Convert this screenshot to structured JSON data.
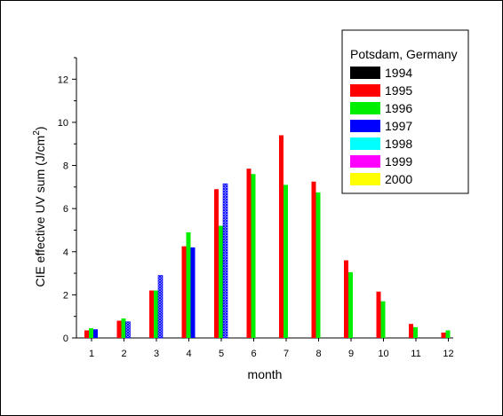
{
  "chart_data": {
    "type": "bar",
    "xlabel": "month",
    "ylabel": "CIE effective UV sum (J/cm",
    "ylabel_sup": "2",
    "ylabel_close": ")",
    "ylim": [
      0,
      13
    ],
    "yticks": [
      0,
      2,
      4,
      6,
      8,
      10,
      12
    ],
    "categories": [
      "1",
      "2",
      "3",
      "4",
      "5",
      "6",
      "7",
      "8",
      "9",
      "10",
      "11",
      "12"
    ],
    "legend": {
      "title": "Potsdam, Germany",
      "placement": "top-right"
    },
    "series": [
      {
        "name": "1994",
        "color": "#000000",
        "values": [
          null,
          null,
          null,
          null,
          null,
          null,
          null,
          null,
          null,
          null,
          null,
          null
        ]
      },
      {
        "name": "1995",
        "color": "#ff0000",
        "values": [
          0.35,
          0.8,
          2.2,
          4.25,
          6.9,
          7.85,
          9.4,
          7.25,
          3.6,
          2.15,
          0.65,
          0.25
        ]
      },
      {
        "name": "1996",
        "color": "#00ee00",
        "values": [
          0.45,
          0.9,
          2.2,
          4.9,
          5.2,
          7.6,
          7.1,
          6.75,
          3.05,
          1.7,
          0.5,
          0.35
        ]
      },
      {
        "name": "1997",
        "color": "#0000ff",
        "pattern_from_month": 2,
        "values": [
          0.4,
          0.75,
          2.9,
          4.2,
          7.15,
          null,
          null,
          null,
          null,
          null,
          null,
          null
        ]
      },
      {
        "name": "1998",
        "color": "#00ffff",
        "values": [
          null,
          null,
          null,
          null,
          null,
          null,
          null,
          null,
          null,
          null,
          null,
          null
        ]
      },
      {
        "name": "1999",
        "color": "#ff00ff",
        "values": [
          null,
          null,
          null,
          null,
          null,
          null,
          null,
          null,
          null,
          null,
          null,
          null
        ]
      },
      {
        "name": "2000",
        "color": "#ffff00",
        "values": [
          null,
          null,
          null,
          null,
          null,
          null,
          null,
          null,
          null,
          null,
          null,
          null
        ]
      }
    ]
  }
}
